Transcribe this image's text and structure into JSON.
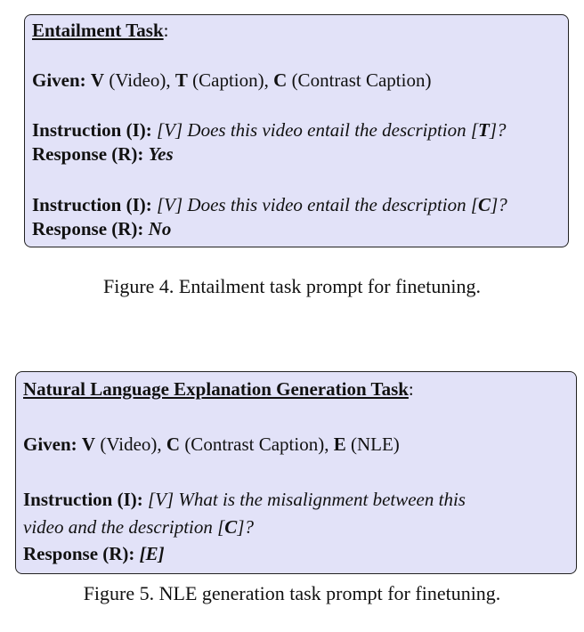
{
  "box1": {
    "title": "Entailment Task",
    "title_suffix": ":",
    "given": {
      "label": "Given:",
      "v": "V",
      "v_desc": " (Video), ",
      "t": "T",
      "t_desc": " (Caption), ",
      "c": "C",
      "c_desc": " (Contrast Caption)"
    },
    "instr1": {
      "label": "Instruction (I):",
      "pre": " [V] Does this video entail the description [",
      "var": "T",
      "post": "]?"
    },
    "resp1": {
      "label": "Response (R):",
      "value": "Yes"
    },
    "instr2": {
      "label": "Instruction (I):",
      "pre": " [V] Does this video entail the description [",
      "var": "C",
      "post": "]?"
    },
    "resp2": {
      "label": "Response (R):",
      "value": "No"
    }
  },
  "caption1": "Figure 4. Entailment task prompt for finetuning.",
  "box2": {
    "title": "Natural Language Explanation Generation Task",
    "title_suffix": ":",
    "given": {
      "label": "Given:",
      "v": "V",
      "v_desc": " (Video), ",
      "c": "C",
      "c_desc": " (Contrast Caption), ",
      "e": "E",
      "e_desc": " (NLE)"
    },
    "instr": {
      "label": "Instruction (I):",
      "line1": " [V] What is the misalignment between this",
      "line2_pre": " video and the description [",
      "var": "C",
      "line2_post": "]?"
    },
    "resp": {
      "label": "Response (R):",
      "value": "[E]"
    }
  },
  "caption2": "Figure 5. NLE generation task prompt for finetuning."
}
